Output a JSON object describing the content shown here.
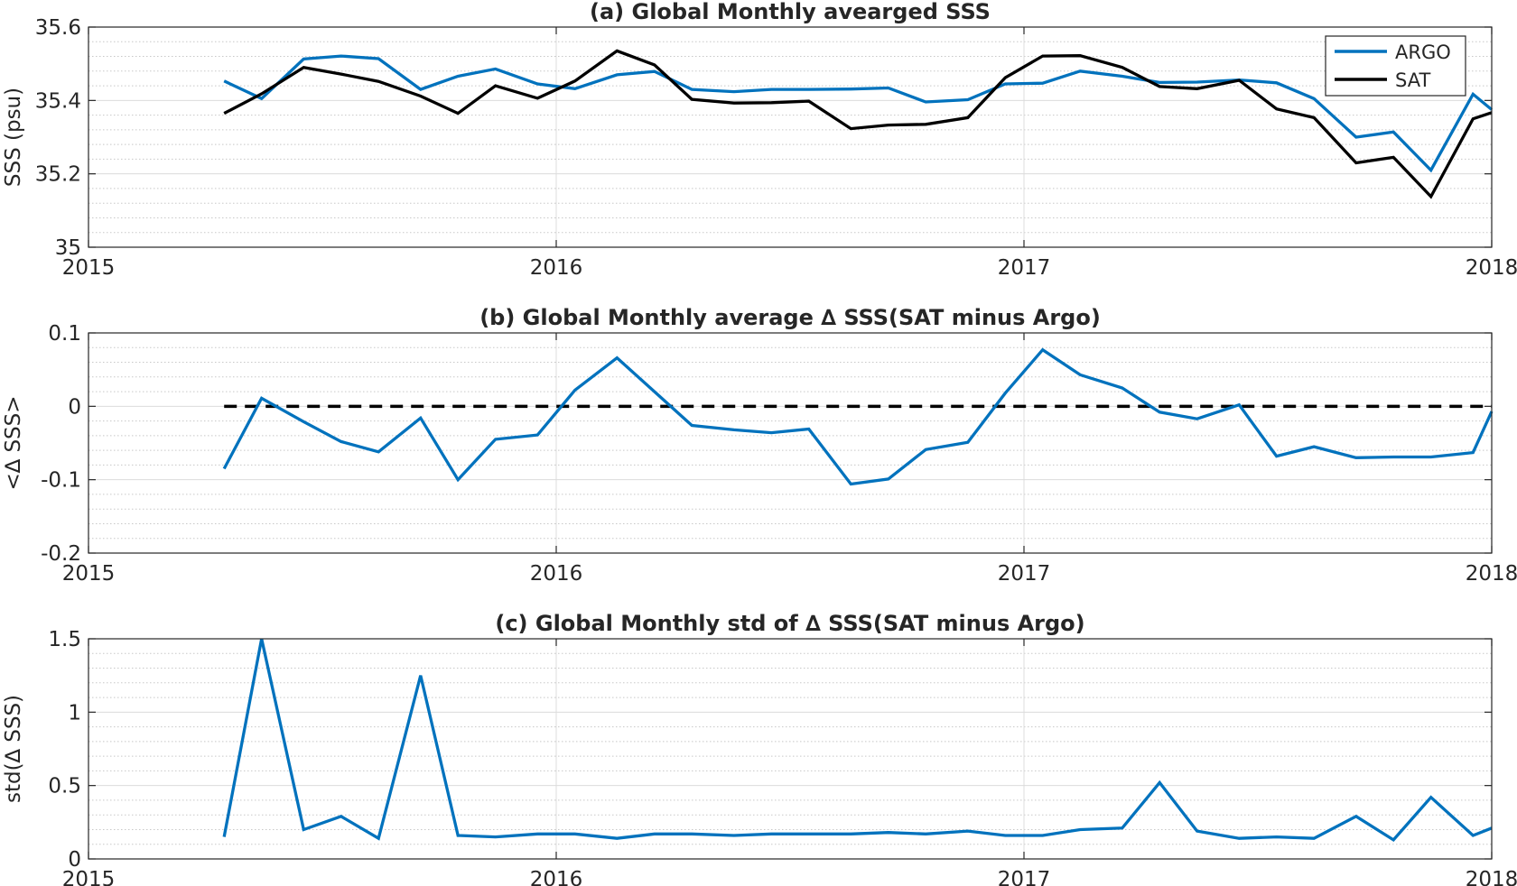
{
  "colors": {
    "argo": "#0072bd",
    "sat": "#000000",
    "zero_line": "#000000"
  },
  "chart_data": [
    {
      "type": "line",
      "title": "(a) Global Monthly avearged SSS",
      "ylabel": "SSS (psu)",
      "xlabel": "",
      "xlim": [
        2015,
        2018
      ],
      "ylim": [
        35.0,
        35.6
      ],
      "x_ticks": [
        2015,
        2016,
        2017,
        2018
      ],
      "x_tick_labels": [
        "2015",
        "2016",
        "2017",
        "2018"
      ],
      "y_ticks": [
        35.0,
        35.2,
        35.4,
        35.6
      ],
      "y_tick_labels": [
        "35",
        "35.2",
        "35.4",
        "35.6"
      ],
      "grid": true,
      "minor_grid": true,
      "legend": {
        "placement": "top-right",
        "entries": [
          "ARGO",
          "SAT"
        ]
      },
      "x": [
        2015.29,
        2015.37,
        2015.46,
        2015.54,
        2015.62,
        2015.71,
        2015.79,
        2015.87,
        2015.96,
        2016.04,
        2016.13,
        2016.21,
        2016.29,
        2016.38,
        2016.46,
        2016.54,
        2016.63,
        2016.71,
        2016.79,
        2016.88,
        2016.96,
        2017.04,
        2017.12,
        2017.21,
        2017.29,
        2017.37,
        2017.46,
        2017.54,
        2017.62,
        2017.71,
        2017.79,
        2017.87,
        2017.96,
        2018.0
      ],
      "series": [
        {
          "name": "ARGO",
          "color": "#0072bd",
          "values": [
            35.453,
            35.405,
            35.513,
            35.521,
            35.514,
            35.43,
            35.466,
            35.486,
            35.445,
            35.432,
            35.47,
            35.479,
            35.43,
            35.424,
            35.43,
            35.43,
            35.431,
            35.434,
            35.396,
            35.402,
            35.445,
            35.447,
            35.48,
            35.466,
            35.449,
            35.45,
            35.456,
            35.448,
            35.405,
            35.3,
            35.314,
            35.21,
            35.417,
            35.375
          ]
        },
        {
          "name": "SAT",
          "color": "#000000",
          "values": [
            35.365,
            35.418,
            35.49,
            35.472,
            35.452,
            35.412,
            35.365,
            35.44,
            35.406,
            35.453,
            35.535,
            35.497,
            35.403,
            35.393,
            35.394,
            35.398,
            35.323,
            35.333,
            35.335,
            35.353,
            35.462,
            35.521,
            35.522,
            35.49,
            35.438,
            35.432,
            35.455,
            35.377,
            35.353,
            35.23,
            35.245,
            35.138,
            35.35,
            35.367
          ]
        }
      ]
    },
    {
      "type": "line",
      "title": "(b) Global Monthly average ∆ SSS(SAT minus Argo)",
      "ylabel": "<∆ SSS>",
      "xlabel": "",
      "xlim": [
        2015,
        2018
      ],
      "ylim": [
        -0.2,
        0.1
      ],
      "x_ticks": [
        2015,
        2016,
        2017,
        2018
      ],
      "x_tick_labels": [
        "2015",
        "2016",
        "2017",
        "2018"
      ],
      "y_ticks": [
        -0.2,
        -0.1,
        0,
        0.1
      ],
      "y_tick_labels": [
        "-0.2",
        "-0.1",
        "0",
        "0.1"
      ],
      "grid": true,
      "minor_grid": true,
      "reference_line": {
        "y": 0,
        "style": "dashed"
      },
      "x": [
        2015.29,
        2015.37,
        2015.46,
        2015.54,
        2015.62,
        2015.71,
        2015.79,
        2015.87,
        2015.96,
        2016.04,
        2016.13,
        2016.21,
        2016.29,
        2016.38,
        2016.46,
        2016.54,
        2016.63,
        2016.71,
        2016.79,
        2016.88,
        2016.96,
        2017.04,
        2017.12,
        2017.21,
        2017.29,
        2017.37,
        2017.46,
        2017.54,
        2017.62,
        2017.71,
        2017.79,
        2017.87,
        2017.96,
        2018.0
      ],
      "series": [
        {
          "name": "",
          "color": "#0072bd",
          "values": [
            -0.085,
            0.011,
            -0.021,
            -0.048,
            -0.062,
            -0.016,
            -0.1,
            -0.045,
            -0.039,
            0.022,
            0.066,
            0.02,
            -0.026,
            -0.032,
            -0.036,
            -0.031,
            -0.106,
            -0.099,
            -0.059,
            -0.049,
            0.018,
            0.077,
            0.043,
            0.025,
            -0.008,
            -0.017,
            0.002,
            -0.068,
            -0.055,
            -0.07,
            -0.069,
            -0.069,
            -0.063,
            -0.007
          ]
        }
      ]
    },
    {
      "type": "line",
      "title": "(c) Global Monthly std of ∆ SSS(SAT minus Argo)",
      "ylabel": "std(∆ SSS)",
      "xlabel": "",
      "xlim": [
        2015,
        2018
      ],
      "ylim": [
        0,
        1.5
      ],
      "x_ticks": [
        2015,
        2016,
        2017,
        2018
      ],
      "x_tick_labels": [
        "2015",
        "2016",
        "2017",
        "2018"
      ],
      "y_ticks": [
        0,
        0.5,
        1,
        1.5
      ],
      "y_tick_labels": [
        "0",
        "0.5",
        "1",
        "1.5"
      ],
      "grid": true,
      "minor_grid": true,
      "x": [
        2015.29,
        2015.37,
        2015.46,
        2015.54,
        2015.62,
        2015.71,
        2015.79,
        2015.87,
        2015.96,
        2016.04,
        2016.13,
        2016.21,
        2016.29,
        2016.38,
        2016.46,
        2016.54,
        2016.63,
        2016.71,
        2016.79,
        2016.88,
        2016.96,
        2017.04,
        2017.12,
        2017.21,
        2017.29,
        2017.37,
        2017.46,
        2017.54,
        2017.62,
        2017.71,
        2017.79,
        2017.87,
        2017.96,
        2018.0
      ],
      "series": [
        {
          "name": "",
          "color": "#0072bd",
          "values": [
            0.15,
            1.5,
            0.2,
            0.29,
            0.14,
            1.25,
            0.16,
            0.15,
            0.17,
            0.17,
            0.14,
            0.17,
            0.17,
            0.16,
            0.17,
            0.17,
            0.17,
            0.18,
            0.17,
            0.19,
            0.16,
            0.16,
            0.2,
            0.21,
            0.52,
            0.19,
            0.14,
            0.15,
            0.14,
            0.29,
            0.13,
            0.42,
            0.16,
            0.21
          ]
        }
      ]
    }
  ]
}
